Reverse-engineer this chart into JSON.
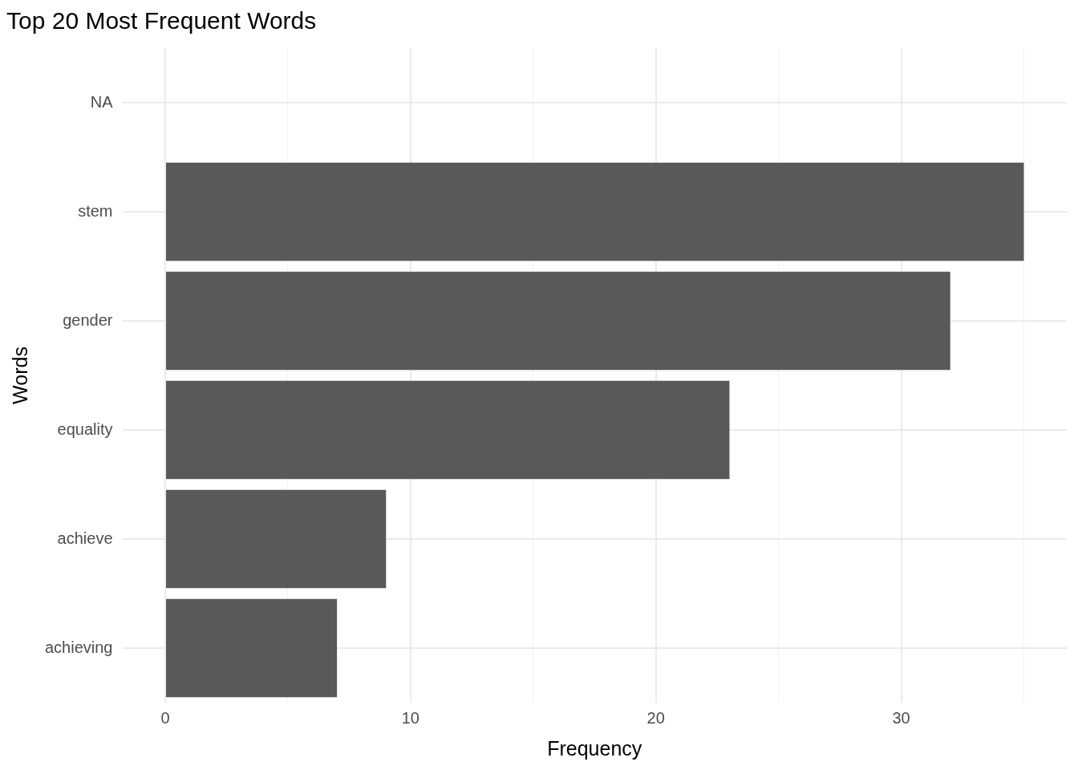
{
  "chart_data": {
    "type": "bar",
    "orientation": "horizontal",
    "title": "Top 20 Most Frequent Words",
    "xlabel": "Frequency",
    "ylabel": "Words",
    "categories": [
      "NA",
      "stem",
      "gender",
      "equality",
      "achieve",
      "achieving"
    ],
    "values": [
      null,
      35,
      32,
      23,
      9,
      7
    ],
    "color": "#595959",
    "xlim": [
      -1.75,
      36.75
    ],
    "xticks": [
      0,
      {
        "value": 5,
        "label": null
      },
      10,
      {
        "value": 15,
        "label": null
      },
      20,
      {
        "value": 25,
        "label": null
      },
      30,
      {
        "value": 35,
        "label": null
      }
    ],
    "grid": true,
    "legend": false
  }
}
